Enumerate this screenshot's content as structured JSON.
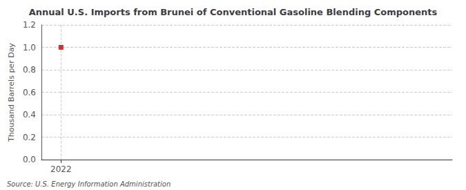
{
  "chart_data": {
    "type": "scatter",
    "title": "Annual U.S. Imports from Brunei of Conventional Gasoline Blending Components",
    "ylabel": "Thousand Barrels per Day",
    "annotations": [
      "Source: U.S. Energy Information Administration"
    ],
    "x": [
      2022
    ],
    "values": [
      1.0
    ],
    "color": "#cc0000",
    "marker": "square",
    "xlim": [
      2021.6,
      2030.0
    ],
    "xticks": [
      2022
    ],
    "ylim": [
      0.0,
      1.2
    ],
    "yticks": [
      {
        "value": 0.0,
        "label": "0.0"
      },
      0.2,
      0.4,
      0.6,
      0.8,
      {
        "value": 1.0,
        "label": "1.0"
      },
      1.2
    ],
    "grid": true
  }
}
